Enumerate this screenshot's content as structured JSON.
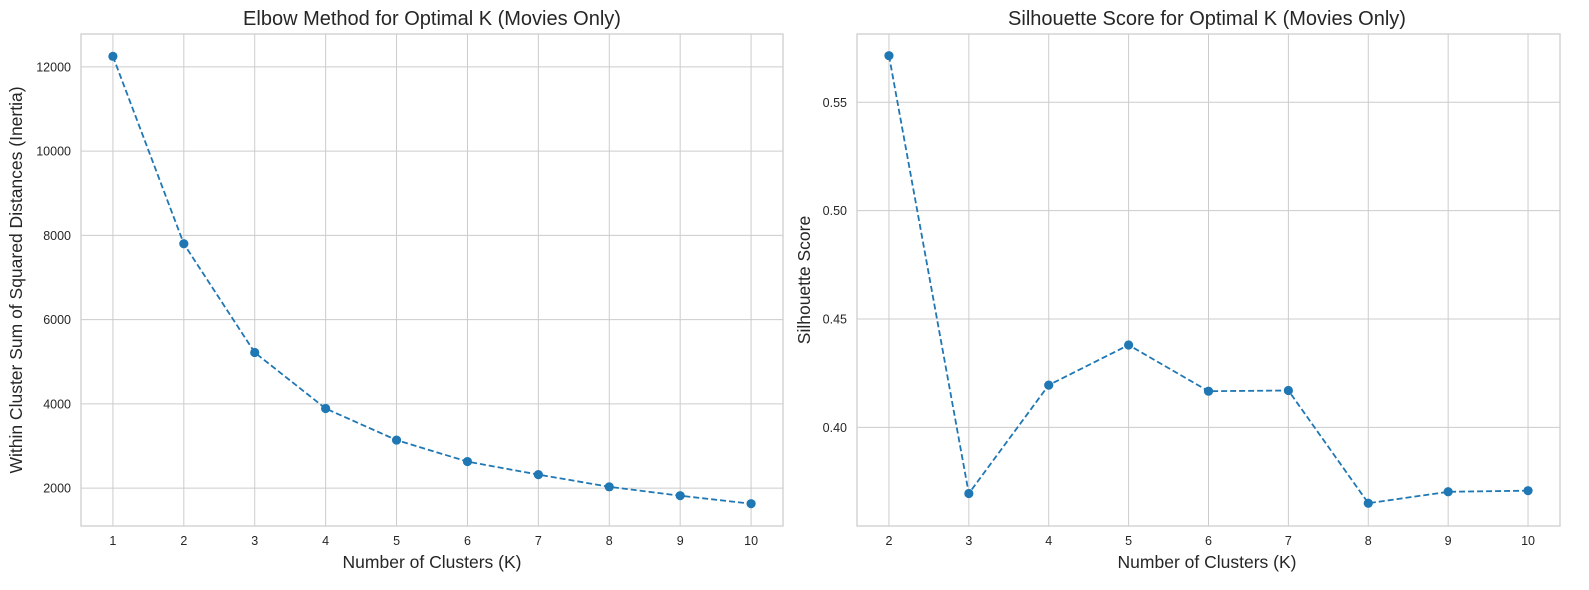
{
  "colors": {
    "series": "#1f77b4",
    "grid": "#cccccc",
    "text": "#262626",
    "background": "#ffffff"
  },
  "chart_data": [
    {
      "type": "line",
      "title": "Elbow Method for Optimal K (Movies Only)",
      "xlabel": "Number of Clusters (K)",
      "ylabel": "Within Cluster Sum of Squared Distances (Inertia)",
      "x": [
        1,
        2,
        3,
        4,
        5,
        6,
        7,
        8,
        9,
        10
      ],
      "xticks": [
        "1",
        "2",
        "3",
        "4",
        "5",
        "6",
        "7",
        "8",
        "9",
        "10"
      ],
      "series": [
        {
          "values": [
            12250,
            7800,
            5220,
            3890,
            3140,
            2630,
            2320,
            2030,
            1820,
            1630
          ]
        }
      ],
      "yticks": [
        "2000",
        "4000",
        "6000",
        "8000",
        "10000",
        "12000"
      ],
      "xlim": [
        0.55,
        10.45
      ],
      "ylim": [
        1100,
        12780
      ],
      "line_style": "dashed",
      "marker": "circle",
      "grid": true,
      "legend": "none"
    },
    {
      "type": "line",
      "title": "Silhouette Score for Optimal K (Movies Only)",
      "xlabel": "Number of Clusters (K)",
      "ylabel": "Silhouette Score",
      "x": [
        2,
        3,
        4,
        5,
        6,
        7,
        8,
        9,
        10
      ],
      "xticks": [
        "2",
        "3",
        "4",
        "5",
        "6",
        "7",
        "8",
        "9",
        "10"
      ],
      "series": [
        {
          "values": [
            0.5715,
            0.3695,
            0.4195,
            0.438,
            0.4167,
            0.417,
            0.365,
            0.3703,
            0.3708
          ]
        }
      ],
      "yticks": [
        "0.40",
        "0.45",
        "0.50",
        "0.55"
      ],
      "xlim": [
        1.6,
        10.4
      ],
      "ylim": [
        0.3545,
        0.5815
      ],
      "line_style": "dashed",
      "marker": "circle",
      "grid": true,
      "legend": "none"
    }
  ]
}
